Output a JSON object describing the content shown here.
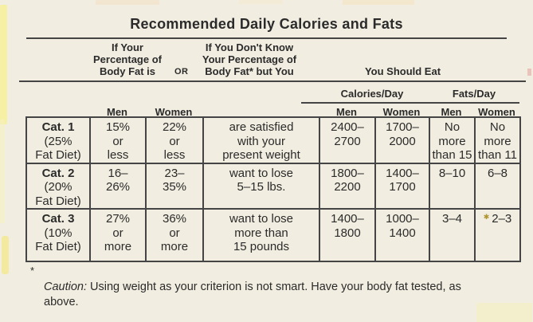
{
  "title": "Recommended Daily Calories and Fats",
  "header": {
    "know_block": "If Your\nPercentage of\nBody Fat is",
    "or_label": "OR",
    "dont_know_block": "If You Don't Know\nYour Percentage of\nBody Fat* but You",
    "you_should_eat": "You Should Eat",
    "calories_day": "Calories/Day",
    "fats_day": "Fats/Day",
    "pct_men": "Men",
    "pct_women": "Women",
    "cal_men": "Men",
    "cal_women": "Women",
    "fat_men": "Men",
    "fat_women": "Women"
  },
  "table": {
    "rows": [
      {
        "cat_name": "Cat. 1",
        "cat_sub": "(25%\nFat Diet)",
        "men_pct": "15%\nor\nless",
        "women_pct": "22%\nor\nless",
        "description": "are satisfied\nwith your\npresent weight",
        "calories_men": "2400–\n2700",
        "calories_women": "1700–\n2000",
        "fats_men": "No\nmore\nthan 15",
        "fats_women": "No\nmore\nthan 11"
      },
      {
        "cat_name": "Cat. 2",
        "cat_sub": "(20%\nFat Diet)",
        "men_pct": "16–\n26%",
        "women_pct": "23–\n35%",
        "description": "want to lose\n5–15 lbs.",
        "calories_men": "1800–\n2200",
        "calories_women": "1400–\n1700",
        "fats_men": "8–10",
        "fats_women": "6–8"
      },
      {
        "cat_name": "Cat. 3",
        "cat_sub": "(10%\nFat Diet)",
        "men_pct": "27%\nor\nmore",
        "women_pct": "36%\nor\nmore",
        "description": "want to lose\nmore than\n15 pounds",
        "calories_men": "1400–\n1800",
        "calories_women": "1000–\n1400",
        "fats_men": "3–4",
        "fats_women": "2–3",
        "artifact_mark": "✱"
      }
    ]
  },
  "footnote": {
    "marker": "*",
    "caution": "Caution:",
    "text": " Using weight as your criterion is not smart. Have your body fat tested, as\nabove."
  },
  "colors": {
    "background": "#f1ede0",
    "line": "#454545",
    "text": "#2b2b2b",
    "highlight_strip": "#f7f09a",
    "artifact": "#b0952f"
  }
}
